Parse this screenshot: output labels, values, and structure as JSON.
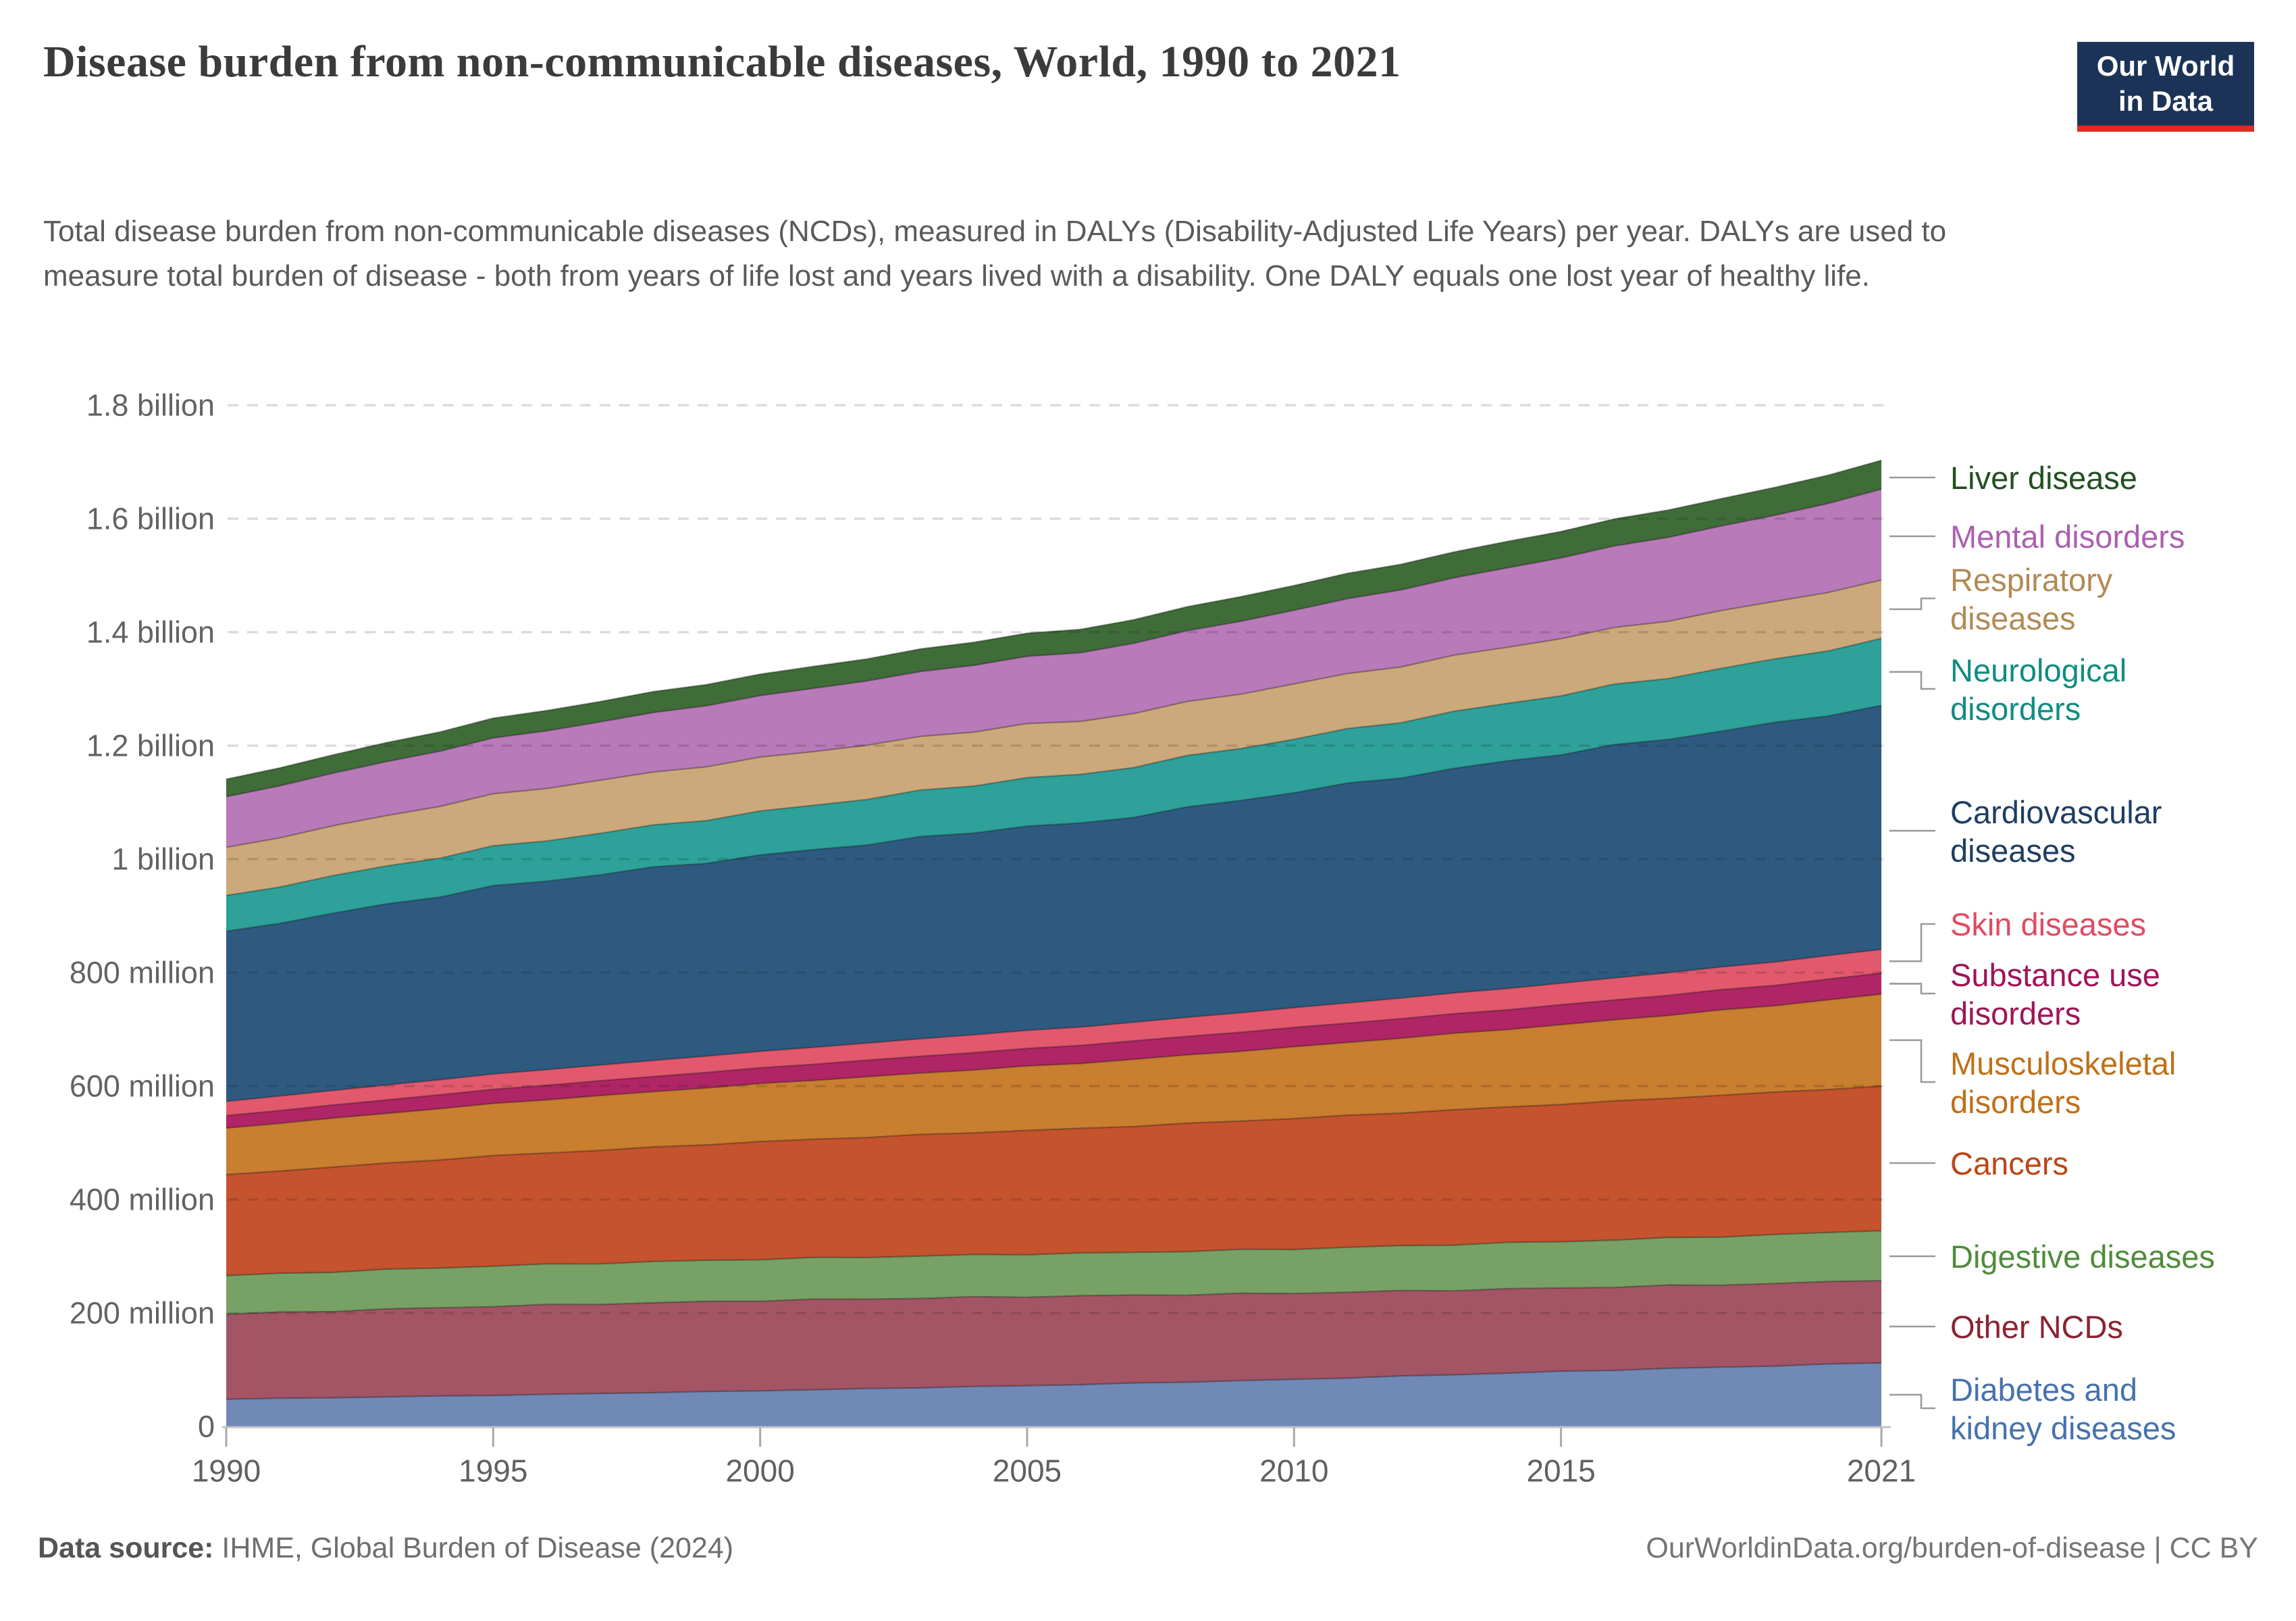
{
  "header": {
    "title": "Disease burden from non-communicable diseases, World, 1990 to 2021",
    "subtitle": "Total disease burden from non-communicable diseases (NCDs), measured in DALYs (Disability-Adjusted Life Years) per year. DALYs are used to measure total burden of disease - both from years of life lost and years lived with a disability. One DALY equals one lost year of healthy life.",
    "logo": {
      "line1": "Our World",
      "line2": "in Data"
    }
  },
  "footer": {
    "source_label": "Data source:",
    "source_text": " IHME, Global Burden of Disease (2024)",
    "link_text": "OurWorldinData.org/burden-of-disease | CC BY"
  },
  "chart_data": {
    "type": "area",
    "stacked": true,
    "title": "Disease burden from non-communicable diseases, World, 1990 to 2021",
    "unit": "DALYs (Disability-Adjusted Life Years) per year",
    "xlabel": "",
    "ylabel": "",
    "ylim_millions": [
      0,
      1800
    ],
    "grid": "dashed-horizontal",
    "legend_position": "right",
    "anchor_years": [
      1990,
      1995,
      2000,
      2005,
      2006,
      2010,
      2015,
      2019,
      2021
    ],
    "x_ticks": [
      1990,
      1995,
      2000,
      2005,
      2010,
      2015,
      2021
    ],
    "y_ticks": [
      {
        "value": 0,
        "label": "0"
      },
      {
        "value": 200,
        "label": "200 million"
      },
      {
        "value": 400,
        "label": "400 million"
      },
      {
        "value": 600,
        "label": "600 million"
      },
      {
        "value": 800,
        "label": "800 million"
      },
      {
        "value": 1000,
        "label": "1 billion"
      },
      {
        "value": 1200,
        "label": "1.2 billion"
      },
      {
        "value": 1400,
        "label": "1.4 billion"
      },
      {
        "value": 1600,
        "label": "1.6 billion"
      },
      {
        "value": 1800,
        "label": "1.8 billion"
      }
    ],
    "values_unit": "millions of DALYs",
    "series": [
      {
        "id": "diabetes-kidney",
        "label_lines": [
          "Diabetes and",
          "kidney diseases"
        ],
        "color": "#7189b7",
        "label_color": "#4672ae",
        "values": [
          48,
          55,
          63,
          72,
          74,
          83,
          97,
          107,
          112
        ]
      },
      {
        "id": "other-ncds",
        "label_lines": [
          "Other NCDs"
        ],
        "color": "#a35565",
        "label_color": "#8b2332",
        "values": [
          150,
          157,
          159,
          157,
          156,
          152,
          147,
          145,
          145
        ]
      },
      {
        "id": "digestive",
        "label_lines": [
          "Digestive diseases"
        ],
        "color": "#78a166",
        "label_color": "#4f8c3b",
        "values": [
          68,
          71,
          73,
          75,
          75,
          78,
          82,
          86,
          88
        ]
      },
      {
        "id": "cancers",
        "label_lines": [
          "Cancers"
        ],
        "color": "#c4532e",
        "label_color": "#bc4517",
        "values": [
          178,
          194,
          207,
          218,
          220,
          230,
          242,
          251,
          255
        ]
      },
      {
        "id": "musculoskeletal",
        "label_lines": [
          "Musculoskeletal",
          "disorders"
        ],
        "color": "#c97e30",
        "label_color": "#bf7018",
        "values": [
          82,
          92,
          102,
          113,
          115,
          126,
          140,
          153,
          162
        ]
      },
      {
        "id": "substance-use",
        "label_lines": [
          "Substance use",
          "disorders"
        ],
        "color": "#b02565",
        "label_color": "#a01458",
        "values": [
          22,
          25,
          28,
          31,
          32,
          34,
          35,
          36,
          37
        ]
      },
      {
        "id": "skin",
        "label_lines": [
          "Skin diseases"
        ],
        "color": "#e2596e",
        "label_color": "#e14b62",
        "values": [
          25,
          27,
          29,
          32,
          32,
          35,
          38,
          41,
          42
        ]
      },
      {
        "id": "cardiovascular",
        "label_lines": [
          "Cardiovascular",
          "diseases"
        ],
        "color": "#2f5a80",
        "label_color": "#1e3e63",
        "values": [
          300,
          330,
          345,
          360,
          358,
          380,
          405,
          420,
          430
        ]
      },
      {
        "id": "neurological",
        "label_lines": [
          "Neurological",
          "disorders"
        ],
        "color": "#2da19a",
        "label_color": "#0f8d82",
        "values": [
          63,
          70,
          77,
          85,
          86,
          94,
          104,
          112,
          118
        ]
      },
      {
        "id": "respiratory",
        "label_lines": [
          "Respiratory",
          "diseases"
        ],
        "color": "#cca97b",
        "label_color": "#b28a55",
        "values": [
          85,
          92,
          95,
          95,
          94,
          97,
          100,
          102,
          103
        ]
      },
      {
        "id": "mental",
        "label_lines": [
          "Mental disorders"
        ],
        "color": "#b97ab9",
        "label_color": "#ad5fb0",
        "values": [
          89,
          99,
          109,
          119,
          121,
          130,
          142,
          152,
          160
        ]
      },
      {
        "id": "liver",
        "label_lines": [
          "Liver disease"
        ],
        "color": "#3f6c38",
        "label_color": "#234f21",
        "values": [
          31,
          35,
          38,
          41,
          41,
          44,
          47,
          49,
          51
        ]
      }
    ]
  }
}
